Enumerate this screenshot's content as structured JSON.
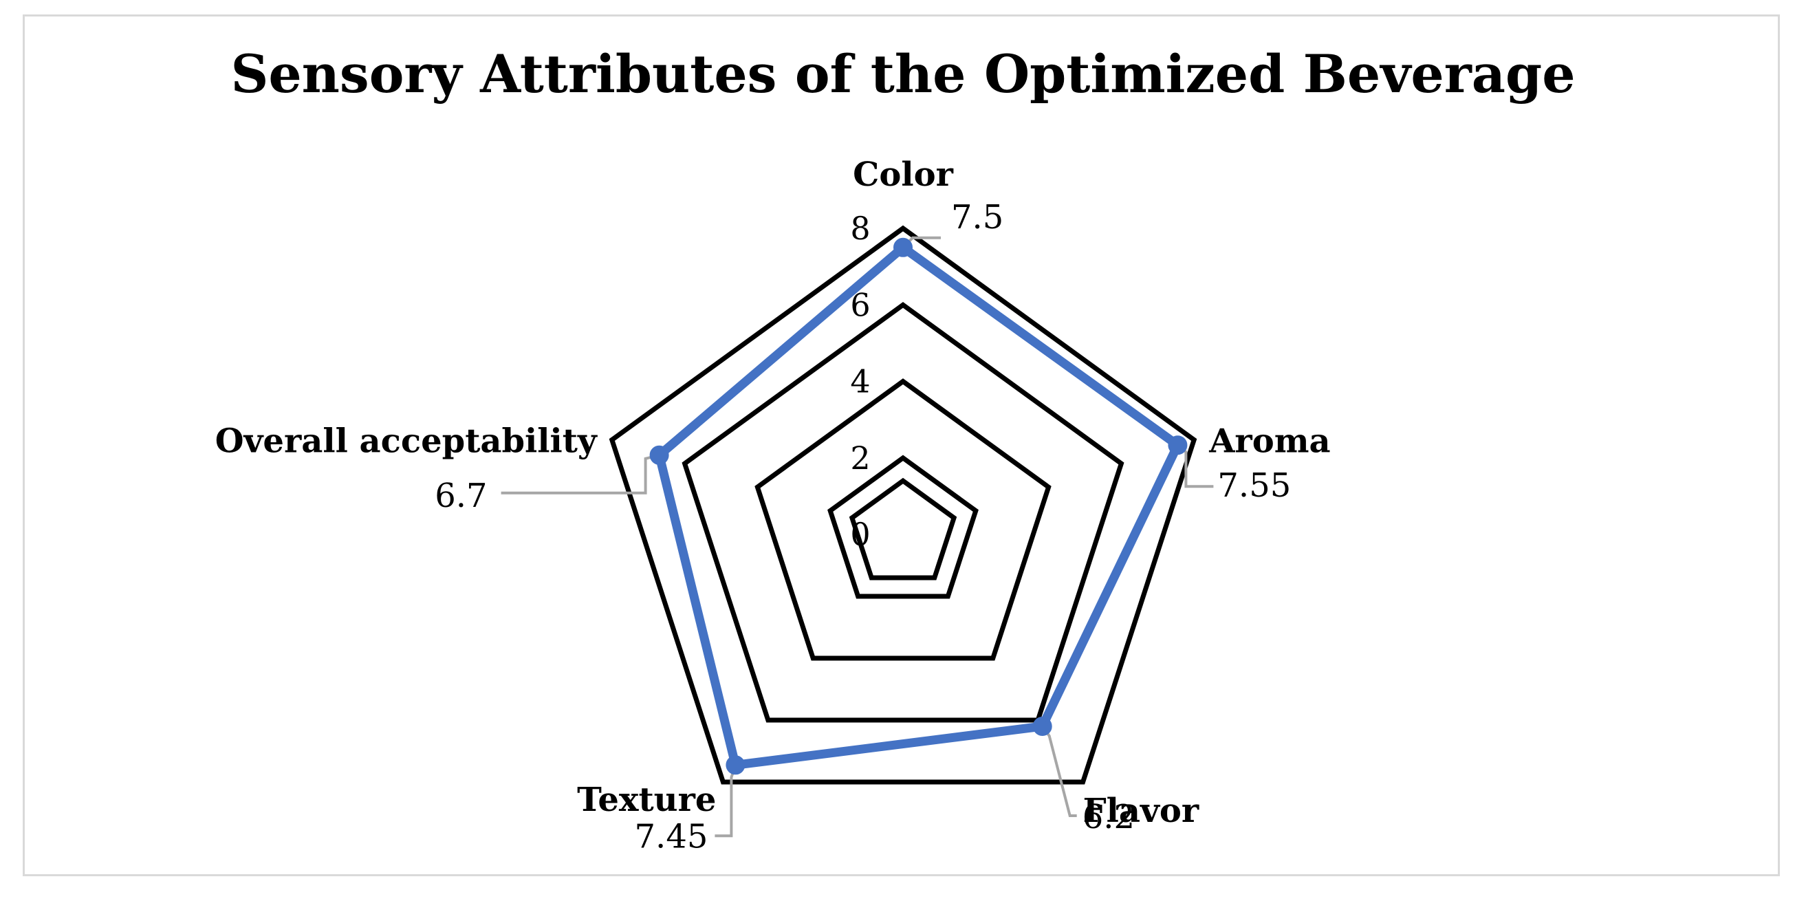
{
  "chart_data": {
    "type": "radar",
    "title": "Sensory Attributes of the Optimized Beverage",
    "categories": [
      "Color",
      "Aroma",
      "Flavor",
      "Texture",
      "Overall acceptability"
    ],
    "series": [
      {
        "values": [
          7.5,
          7.55,
          6.2,
          7.45,
          6.7
        ],
        "data_labels": [
          "7.5",
          "7.55",
          "6.2",
          "7.45",
          "6.7"
        ]
      }
    ],
    "rlim": [
      0,
      8
    ],
    "ticks": [
      "0",
      "2",
      "4",
      "6",
      "8"
    ],
    "grid": true,
    "legend": "none"
  },
  "colors": {
    "series": "#4472c4",
    "grid": "#000000",
    "leader": "#a6a6a6",
    "frame": "#d9d9d9"
  }
}
